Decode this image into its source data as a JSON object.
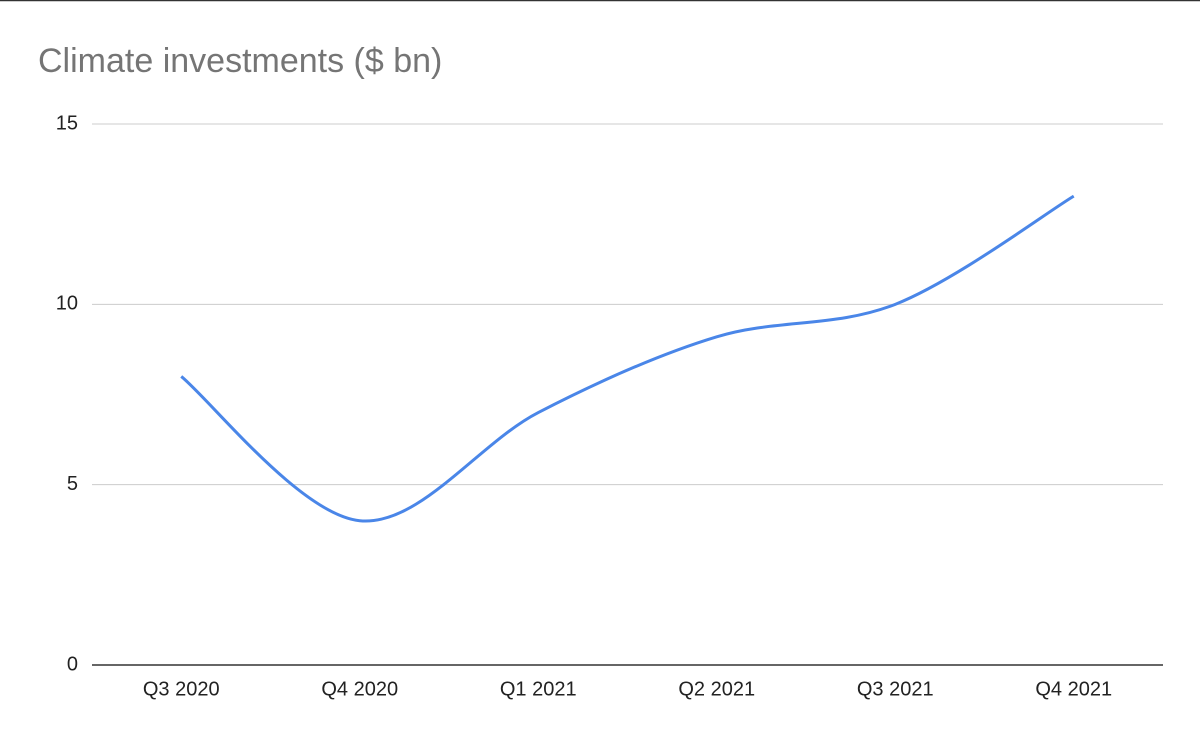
{
  "chart_data": {
    "type": "line",
    "title": "Climate investments ($ bn)",
    "categories": [
      "Q3 2020",
      "Q4 2020",
      "Q1 2021",
      "Q2 2021",
      "Q3 2021",
      "Q4 2021"
    ],
    "series": [
      {
        "name": "Climate investments",
        "color": "#4a86e8",
        "values": [
          8,
          4,
          7,
          9.1,
          10,
          13
        ]
      }
    ],
    "ylim": [
      0,
      15
    ],
    "yticks": [
      0,
      5,
      10,
      15
    ],
    "grid": true,
    "smooth": true
  }
}
